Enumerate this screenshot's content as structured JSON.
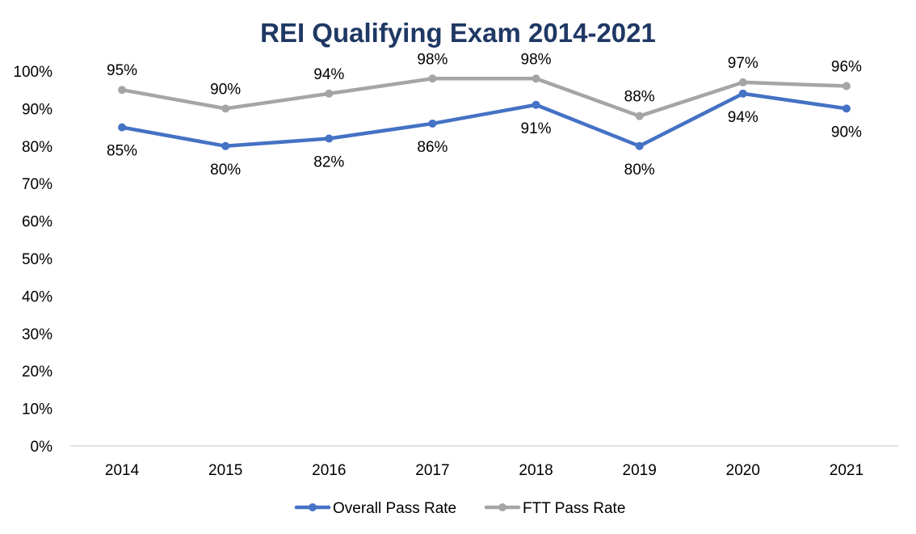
{
  "chart_data": {
    "type": "line",
    "title": "REI Qualifying Exam 2014-2021",
    "xlabel": "",
    "ylabel": "",
    "categories": [
      "2014",
      "2015",
      "2016",
      "2017",
      "2018",
      "2019",
      "2020",
      "2021"
    ],
    "ylim": [
      0,
      100
    ],
    "yticks": [
      "0%",
      "10%",
      "20%",
      "30%",
      "40%",
      "50%",
      "60%",
      "70%",
      "80%",
      "90%",
      "100%"
    ],
    "grid": false,
    "legend": "bottom",
    "series": [
      {
        "name": "Overall Pass Rate",
        "color": "#4472c4",
        "values": [
          85,
          80,
          82,
          86,
          91,
          80,
          94,
          90
        ],
        "labels": [
          "85%",
          "80%",
          "82%",
          "86%",
          "91%",
          "80%",
          "94%",
          "90%"
        ],
        "label_position": "below"
      },
      {
        "name": "FTT Pass Rate",
        "color": "#a5a5a5",
        "values": [
          95,
          90,
          94,
          98,
          98,
          88,
          97,
          96
        ],
        "labels": [
          "95%",
          "90%",
          "94%",
          "98%",
          "98%",
          "88%",
          "97%",
          "96%"
        ],
        "label_position": "above"
      }
    ]
  }
}
